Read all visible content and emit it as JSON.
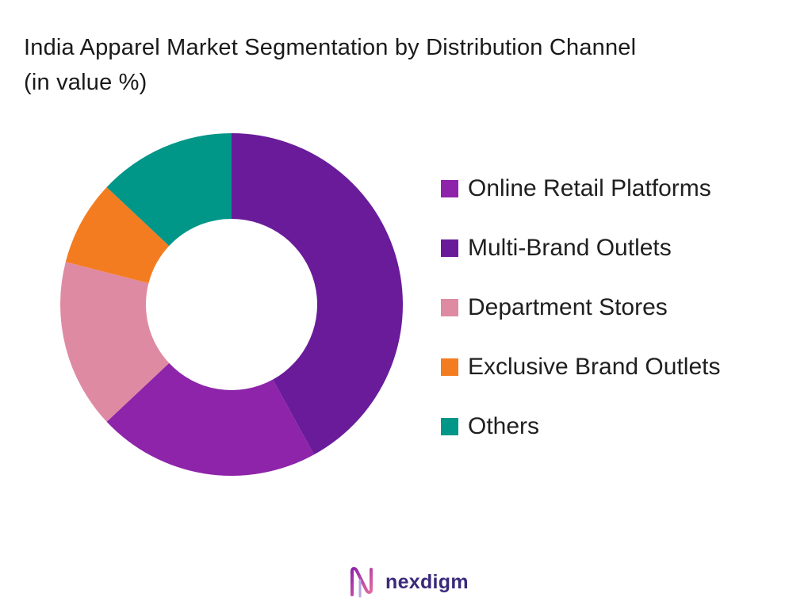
{
  "title_lines": [
    "India Apparel Market Segmentation by Distribution Channel",
    "(in value %)"
  ],
  "chart_data": {
    "type": "pie",
    "style": "donut",
    "title": "India Apparel Market Segmentation by Distribution Channel (in value %)",
    "legend_position": "right",
    "slices": [
      {
        "name": "Multi-Brand Outlets",
        "value": 42,
        "color": "#6a1b9a"
      },
      {
        "name": "Online Retail Platforms",
        "value": 21,
        "color": "#8e24aa"
      },
      {
        "name": "Department Stores",
        "value": 16,
        "color": "#df8aa3"
      },
      {
        "name": "Exclusive Brand Outlets",
        "value": 8,
        "color": "#f47c20"
      },
      {
        "name": "Others",
        "value": 13,
        "color": "#009688"
      }
    ],
    "legend_order": [
      "Online Retail Platforms",
      "Multi-Brand Outlets",
      "Department Stores",
      "Exclusive Brand Outlets",
      "Others"
    ]
  },
  "logo": {
    "text": "nexdigm",
    "icon": "nexdigm-logo-icon",
    "color": "#3a2a7a"
  }
}
